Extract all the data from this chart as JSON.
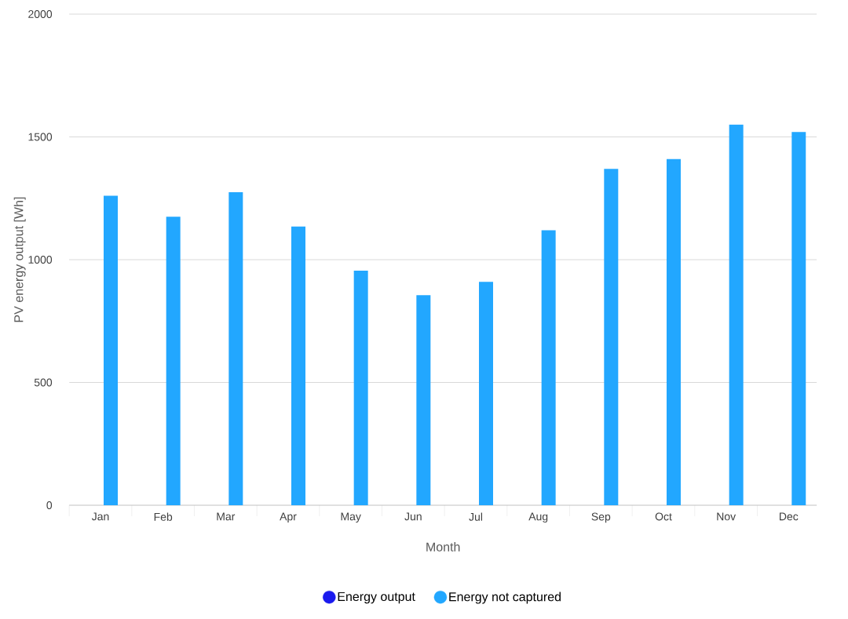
{
  "chart_data": {
    "type": "bar",
    "xlabel": "Month",
    "ylabel": "PV energy output [Wh]",
    "categories": [
      "Jan",
      "Feb",
      "Mar",
      "Apr",
      "May",
      "Jun",
      "Jul",
      "Aug",
      "Sep",
      "Oct",
      "Nov",
      "Dec"
    ],
    "series": [
      {
        "name": "Energy output",
        "color": "#1a1aee",
        "values": [
          null,
          null,
          null,
          null,
          null,
          null,
          null,
          null,
          null,
          null,
          null,
          null
        ]
      },
      {
        "name": "Energy not captured",
        "color": "#22a7ff",
        "values": [
          1260,
          1175,
          1275,
          1135,
          955,
          855,
          910,
          1120,
          1370,
          1410,
          1550,
          1520
        ]
      }
    ],
    "ylim": [
      0,
      2000
    ],
    "yticks": [
      0,
      500,
      1000,
      1500,
      2000
    ],
    "grid": "y",
    "legend": "bottom"
  }
}
